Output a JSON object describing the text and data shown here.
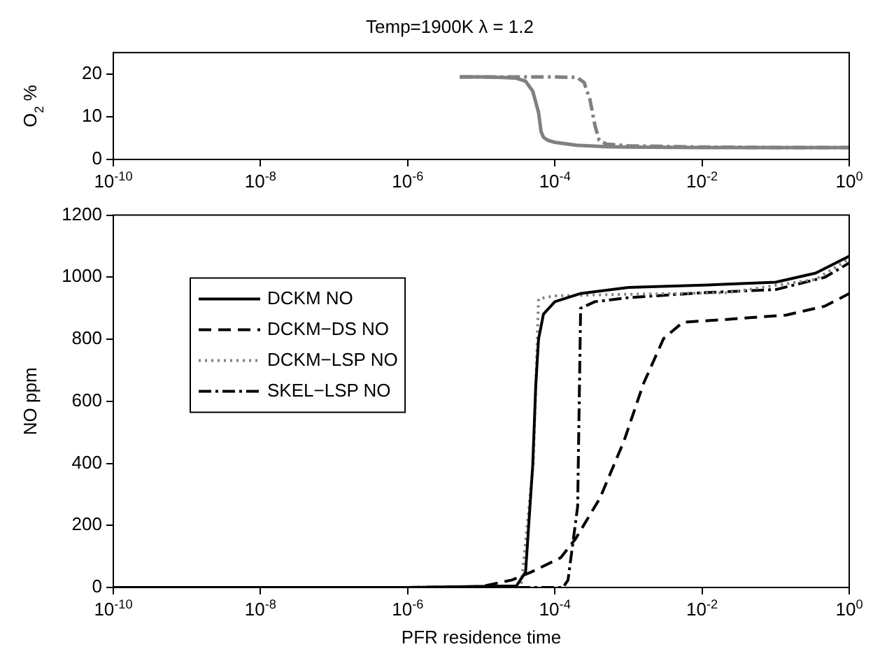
{
  "chart_data": [
    {
      "type": "line",
      "title": "Temp=1900K λ = 1.2",
      "ylabel": "O$_{2}$ %",
      "xlim": [
        1e-10,
        1
      ],
      "xticks": [
        {
          "value": 1e-10,
          "label": "10$^{-10}$"
        },
        {
          "value": 1e-08,
          "label": "10$^{-8}$"
        },
        {
          "value": 1e-06,
          "label": "10$^{-6}$"
        },
        {
          "value": 0.0001,
          "label": "10$^{-4}$"
        },
        {
          "value": 0.01,
          "label": "10$^{-2}$"
        },
        {
          "value": 1,
          "label": "10$^{0}$"
        }
      ],
      "log": "x",
      "ylim": [
        0,
        25
      ],
      "yticks": [
        0,
        10,
        20
      ],
      "grid": false,
      "legend": false,
      "marker": "none",
      "series": [
        {
          "color": "#808080",
          "line_style": "solid",
          "x": [
            5.1e-06,
            1e-05,
            2e-05,
            3e-05,
            4e-05,
            5e-05,
            6e-05,
            6.5e-05,
            7e-05,
            8e-05,
            0.0001,
            0.0002,
            0.0005,
            0.001,
            0.01,
            0.1,
            1
          ],
          "values": [
            19.3,
            19.3,
            19.2,
            19,
            18.3,
            16,
            11,
            6.5,
            5.2,
            4.5,
            4,
            3.3,
            3,
            2.9,
            2.8,
            2.8,
            2.8
          ]
        },
        {
          "color": "#808080",
          "line_style": "dashdot",
          "x": [
            5.1e-06,
            1e-05,
            0.0001,
            0.0002,
            0.00025,
            0.0003,
            0.00035,
            0.0004,
            0.0005,
            0.001,
            0.01,
            0.1,
            1
          ],
          "values": [
            19.3,
            19.3,
            19.3,
            19.2,
            18,
            14,
            8,
            4.5,
            3.6,
            3.2,
            2.9,
            2.8,
            2.8
          ]
        }
      ]
    },
    {
      "type": "line",
      "xlabel": "PFR residence time",
      "ylabel": "NO ppm",
      "xlim": [
        1e-10,
        1
      ],
      "xticks": [
        {
          "value": 1e-10,
          "label": "10$^{-10}$"
        },
        {
          "value": 1e-08,
          "label": "10$^{-8}$"
        },
        {
          "value": 1e-06,
          "label": "10$^{-6}$"
        },
        {
          "value": 0.0001,
          "label": "10$^{-4}$"
        },
        {
          "value": 0.01,
          "label": "10$^{-2}$"
        },
        {
          "value": 1,
          "label": "10$^{0}$"
        }
      ],
      "log": "x",
      "ylim": [
        0,
        1200
      ],
      "yticks": [
        0,
        200,
        400,
        600,
        800,
        1000,
        1200
      ],
      "grid": false,
      "legend": "top left",
      "marker": "none",
      "series": [
        {
          "name": "DCKM NO",
          "color": "#000000",
          "line_style": "solid",
          "x": [
            1e-10,
            1e-06,
            3e-05,
            4e-05,
            5e-05,
            5.5e-05,
            6e-05,
            7e-05,
            0.0001,
            0.00022,
            0.001,
            0.01,
            0.1,
            0.35,
            1
          ],
          "values": [
            0,
            0,
            5,
            50,
            393,
            650,
            800,
            881,
            921,
            947,
            967,
            974,
            984,
            1013,
            1068
          ]
        },
        {
          "name": "DCKM−DS NO",
          "color": "#000000",
          "line_style": "dashed",
          "x": [
            1e-10,
            1e-06,
            1e-05,
            2.6e-05,
            4.8e-05,
            0.00012,
            0.00019,
            0.00041,
            0.00087,
            0.0016,
            0.003,
            0.0055,
            0.022,
            0.14,
            0.47,
            1
          ],
          "values": [
            0,
            0,
            3,
            24,
            50,
            96,
            156,
            288,
            472,
            657,
            802,
            855,
            864,
            878,
            907,
            947
          ]
        },
        {
          "name": "DCKM−LSP NO",
          "color": "#808080",
          "line_style": "dotted",
          "x": [
            1e-10,
            1e-06,
            3e-05,
            3.5e-05,
            5.1e-05,
            6e-05,
            0.0001,
            0.001,
            0.022,
            0.35,
            1
          ],
          "values": [
            0,
            0,
            2,
            10,
            400,
            930,
            940,
            945,
            950,
            993,
            1059
          ]
        },
        {
          "name": "SKEL−LSP NO",
          "color": "#000000",
          "line_style": "dashdot",
          "x": [
            1e-10,
            1e-06,
            0.000129,
            0.000151,
            0.000204,
            0.000224,
            0.00035,
            0.001,
            0.01,
            0.1,
            0.47,
            1
          ],
          "values": [
            0,
            0,
            0,
            24,
            261,
            900,
            921,
            934,
            950,
            960,
            1000,
            1046
          ]
        }
      ]
    }
  ]
}
